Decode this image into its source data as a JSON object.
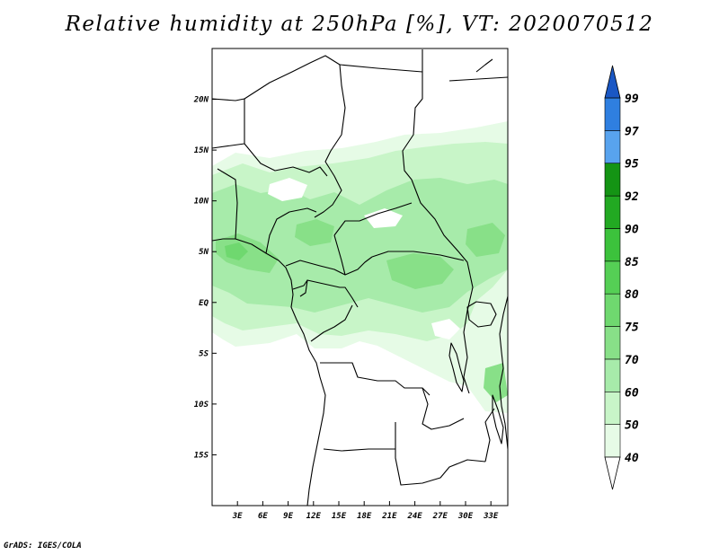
{
  "title": "Relative humidity at 250hPa [%], VT: 2020070512",
  "credit": "GrADS: IGES/COLA",
  "map": {
    "lon_range": [
      0,
      35
    ],
    "lat_range": [
      -20,
      25
    ],
    "lon_ticks": [
      "3E",
      "6E",
      "9E",
      "12E",
      "15E",
      "18E",
      "21E",
      "24E",
      "27E",
      "30E",
      "33E"
    ],
    "lat_ticks": [
      "20N",
      "15N",
      "10N",
      "5N",
      "EQ",
      "5S",
      "10S",
      "15S"
    ]
  },
  "colorbar": {
    "levels": [
      "40",
      "50",
      "60",
      "70",
      "75",
      "80",
      "85",
      "90",
      "92",
      "95",
      "97",
      "99"
    ],
    "colors": [
      "#e6fbe6",
      "#c8f5c8",
      "#a7ebaa",
      "#88e088",
      "#6fd86f",
      "#55cf55",
      "#3cc23c",
      "#22a922",
      "#149414",
      "#58a3ee",
      "#2f7fe0",
      "#1a64d0"
    ],
    "arrow_low_color": "#ffffff",
    "arrow_high_color": "#1a57c4"
  }
}
